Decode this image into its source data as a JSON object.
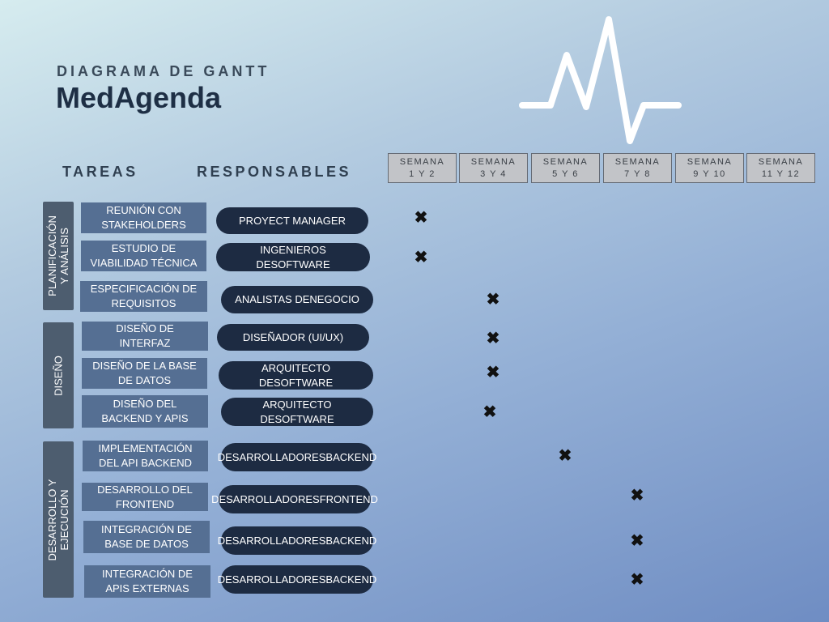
{
  "header": {
    "subtitle": "DIAGRAMA DE GANTT",
    "title": "MedAgenda"
  },
  "columns": {
    "tasks": "TAREAS",
    "responsibles": "RESPONSABLES"
  },
  "weeks": [
    {
      "line1": "SEMANA",
      "line2": "1 Y 2"
    },
    {
      "line1": "SEMANA",
      "line2": "3 Y 4"
    },
    {
      "line1": "SEMANA",
      "line2": "5 Y 6"
    },
    {
      "line1": "SEMANA",
      "line2": "7 Y 8"
    },
    {
      "line1": "SEMANA",
      "line2": "9 Y 10"
    },
    {
      "line1": "SEMANA",
      "line2": "11 Y 12"
    }
  ],
  "phases": [
    {
      "line1": "PLANIFICACIÓN",
      "line2": "Y ANÁLISIS"
    },
    {
      "line1": "DISEÑO",
      "line2": ""
    },
    {
      "line1": "DESARROLLO Y",
      "line2": "EJECUCIÓN"
    }
  ],
  "mark_symbol": "✖",
  "tasks": [
    {
      "l1": "REUNIÓN CON",
      "l2": "STAKEHOLDERS",
      "r1": "PROYECT MANAGER",
      "r2": "",
      "week": 1
    },
    {
      "l1": "ESTUDIO DE",
      "l2": "VIABILIDAD TÉCNICA",
      "r1": "INGENIEROS DE",
      "r2": "SOFTWARE",
      "week": 1
    },
    {
      "l1": "ESPECIFICACIÓN DE",
      "l2": "REQUISITOS",
      "r1": "ANALISTAS DE",
      "r2": "NEGOCIO",
      "week": 2
    },
    {
      "l1": "DISEÑO DE",
      "l2": "INTERFAZ",
      "r1": "DISEÑADOR (UI/UX)",
      "r2": "",
      "week": 2
    },
    {
      "l1": "DISEÑO DE LA BASE",
      "l2": "DE DATOS",
      "r1": "ARQUITECTO DE",
      "r2": "SOFTWARE",
      "week": 2
    },
    {
      "l1": "DISEÑO DEL",
      "l2": "BACKEND Y APIS",
      "r1": "ARQUITECTO DE",
      "r2": "SOFTWARE",
      "week": 2
    },
    {
      "l1": "IMPLEMENTACIÓN",
      "l2": "DEL API BACKEND",
      "r1": "DESARROLLADORES",
      "r2": "BACKEND",
      "week": 3
    },
    {
      "l1": "DESARROLLO DEL",
      "l2": "FRONTEND",
      "r1": "DESARROLLADORES",
      "r2": "FRONTEND",
      "week": 4
    },
    {
      "l1": "INTEGRACIÓN DE",
      "l2": "BASE DE DATOS",
      "r1": "DESARROLLADORES",
      "r2": "BACKEND",
      "week": 4
    },
    {
      "l1": "INTEGRACIÓN DE",
      "l2": "APIS EXTERNAS",
      "r1": "DESARROLLADORES",
      "r2": "BACKEND",
      "week": 4
    }
  ]
}
